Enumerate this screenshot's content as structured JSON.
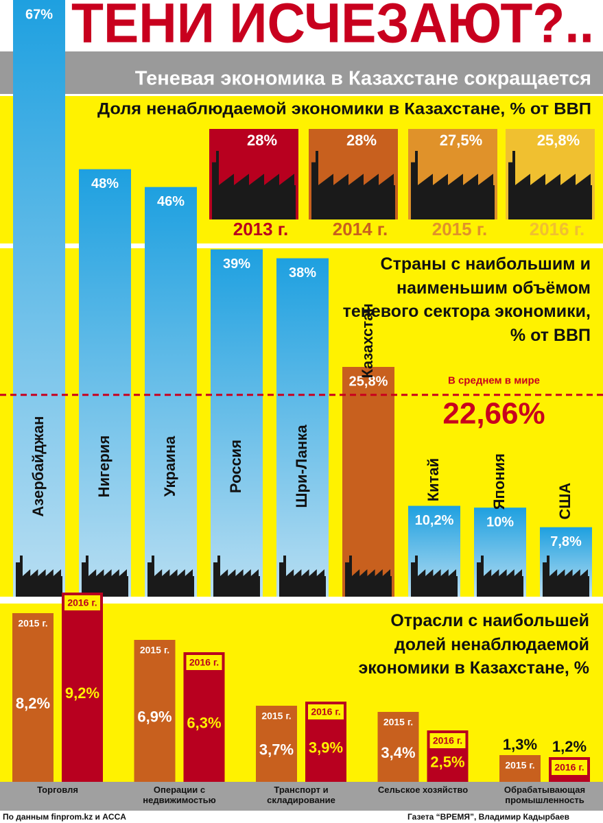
{
  "header": {
    "title": "ТЕНИ ИСЧЕЗАЮТ?..",
    "subtitle": "Теневая экономика в Казахстане сокращается"
  },
  "chart_data": [
    {
      "type": "tiles",
      "title": "Доля ненаблюдаемой экономики в Казахстане, % от ВВП",
      "categories": [
        "2013 г.",
        "2014 г.",
        "2015 г.",
        "2016 г."
      ],
      "values": [
        28,
        28,
        27.5,
        25.8
      ],
      "value_labels": [
        "28%",
        "28%",
        "27,5%",
        "25,8%"
      ],
      "colors": [
        "#b8001f",
        "#c8601e",
        "#e0922a",
        "#f0c030"
      ]
    },
    {
      "type": "bar",
      "title": "Страны с наибольшим и наименьшим объёмом теневого сектора экономики, % от ВВП",
      "categories": [
        "Азербайджан",
        "Нигерия",
        "Украина",
        "Россия",
        "Шри-Ланка",
        "Казахстан",
        "Китай",
        "Япония",
        "США"
      ],
      "values": [
        67,
        48,
        46,
        39,
        38,
        25.8,
        10.2,
        10,
        7.8
      ],
      "value_labels": [
        "67%",
        "48%",
        "46%",
        "39%",
        "38%",
        "25,8%",
        "10,2%",
        "10%",
        "7,8%"
      ],
      "color": "#1ea0e0",
      "highlight": {
        "index": 5,
        "color": "#c8601e"
      },
      "reference": {
        "label": "В среднем в мире",
        "value": 22.66,
        "value_label": "22,66%",
        "color": "#c8001e"
      },
      "ylim": [
        0,
        67
      ]
    },
    {
      "type": "grouped-bar",
      "title": "Отрасли с наибольшей долей ненаблюдаемой экономики в Казахстане, %",
      "categories": [
        "Торговля",
        "Операции с недвижимостью",
        "Транспорт и складирование",
        "Сельское хозяйство",
        "Обрабатывающая промышленность"
      ],
      "series": [
        {
          "name": "2015 г.",
          "color": "#c8601e",
          "values": [
            8.2,
            6.9,
            3.7,
            3.4,
            1.3
          ],
          "value_labels": [
            "8,2%",
            "6,9%",
            "3,7%",
            "3,4%",
            "1,3%"
          ]
        },
        {
          "name": "2016 г.",
          "color": "#b8001f",
          "values": [
            9.2,
            6.3,
            3.9,
            2.5,
            1.2
          ],
          "value_labels": [
            "9,2%",
            "6,3%",
            "3,9%",
            "2,5%",
            "1,2%"
          ]
        }
      ],
      "ylim": [
        0,
        10
      ]
    }
  ],
  "footer": {
    "source": "По данным finprom.kz и ACCA",
    "credit": "Газета “ВРЕМЯ”, Владимир Кадырбаев"
  }
}
